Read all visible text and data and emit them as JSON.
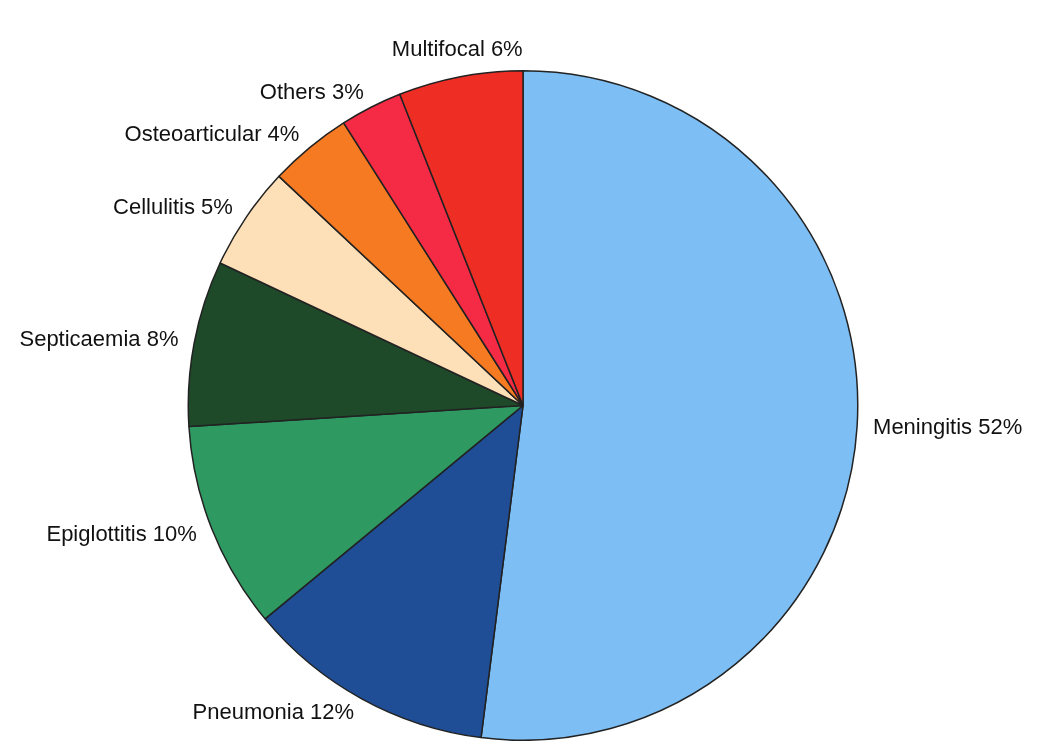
{
  "chart_data": {
    "type": "pie",
    "categories": [
      "Meningitis",
      "Pneumonia",
      "Epiglottitis",
      "Septicaemia",
      "Cellulitis",
      "Osteoarticular",
      "Others",
      "Multifocal"
    ],
    "values": [
      52,
      12,
      10,
      8,
      5,
      4,
      3,
      6
    ],
    "value_labels": [
      "52%",
      "12%",
      "10%",
      "8%",
      "5%",
      "4%",
      "3%",
      "6%"
    ],
    "colors": [
      "#7dbff5",
      "#1f4e96",
      "#2e9a62",
      "#1e4a2a",
      "#fde0b8",
      "#f57a22",
      "#f52a45",
      "#ee2e24"
    ],
    "legend": false
  }
}
